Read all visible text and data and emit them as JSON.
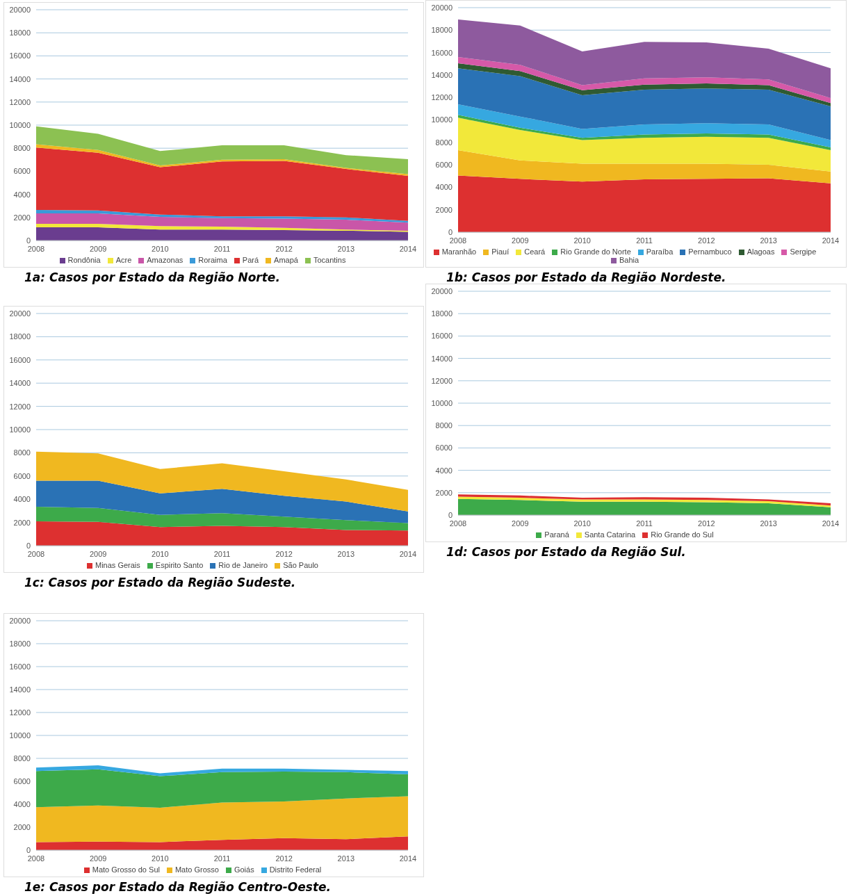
{
  "chart_data": [
    {
      "type": "area",
      "stacked": true,
      "title": "1a: Casos por Estado da Região Norte.",
      "x": [
        2008,
        2009,
        2010,
        2011,
        2012,
        2013,
        2014
      ],
      "xlim": [
        2008,
        2014
      ],
      "xticks": [
        2008,
        2009,
        2010,
        2011,
        2012,
        2013,
        2014
      ],
      "ylim": [
        0,
        20000
      ],
      "yticks": [
        0,
        2000,
        4000,
        6000,
        8000,
        10000,
        12000,
        14000,
        16000,
        18000,
        20000
      ],
      "grid": "y",
      "legend": "bottom",
      "series": [
        {
          "name": "Rondônia",
          "color": "#6a3d8f",
          "values": [
            1150,
            1150,
            950,
            950,
            900,
            850,
            750
          ]
        },
        {
          "name": "Acre",
          "color": "#f2e83a",
          "values": [
            300,
            300,
            300,
            250,
            200,
            100,
            100
          ]
        },
        {
          "name": "Amazonas",
          "color": "#c956a8",
          "values": [
            900,
            900,
            800,
            750,
            800,
            850,
            700
          ]
        },
        {
          "name": "Roraima",
          "color": "#3a9ad9",
          "values": [
            300,
            250,
            200,
            150,
            200,
            200,
            150
          ]
        },
        {
          "name": "Pará",
          "color": "#dd3030",
          "values": [
            5400,
            5000,
            4100,
            4750,
            4800,
            4200,
            3900
          ]
        },
        {
          "name": "Amapá",
          "color": "#f0b820",
          "values": [
            300,
            250,
            150,
            150,
            150,
            100,
            150
          ]
        },
        {
          "name": "Tocantins",
          "color": "#8cc152",
          "values": [
            1550,
            1400,
            1250,
            1250,
            1200,
            1100,
            1300
          ]
        }
      ]
    },
    {
      "type": "area",
      "stacked": true,
      "title": "1b: Casos por Estado da Região Nordeste.",
      "x": [
        2008,
        2009,
        2010,
        2011,
        2012,
        2013,
        2014
      ],
      "xlim": [
        2008,
        2014
      ],
      "xticks": [
        2008,
        2009,
        2010,
        2011,
        2012,
        2013,
        2014
      ],
      "ylim": [
        0,
        20000
      ],
      "yticks": [
        0,
        2000,
        4000,
        6000,
        8000,
        10000,
        12000,
        14000,
        16000,
        18000,
        20000
      ],
      "grid": "y",
      "legend": "bottom",
      "series": [
        {
          "name": "Maranhão",
          "color": "#dd3030",
          "values": [
            5050,
            4750,
            4500,
            4700,
            4750,
            4800,
            4350
          ]
        },
        {
          "name": "Piauí",
          "color": "#f0b820",
          "values": [
            2250,
            1650,
            1600,
            1400,
            1350,
            1200,
            1050
          ]
        },
        {
          "name": "Ceará",
          "color": "#f2e83a",
          "values": [
            2900,
            2700,
            2100,
            2300,
            2400,
            2400,
            1900
          ]
        },
        {
          "name": "Rio Grande do Norte",
          "color": "#3daa4a",
          "values": [
            250,
            200,
            200,
            300,
            300,
            300,
            250
          ]
        },
        {
          "name": "Paraíba",
          "color": "#36a8e0",
          "values": [
            950,
            1000,
            800,
            900,
            900,
            900,
            650
          ]
        },
        {
          "name": "Pernambuco",
          "color": "#2a72b5",
          "values": [
            3200,
            3600,
            3000,
            3100,
            3100,
            3100,
            3000
          ]
        },
        {
          "name": "Alagoas",
          "color": "#2f5a32",
          "values": [
            450,
            450,
            450,
            450,
            450,
            400,
            300
          ]
        },
        {
          "name": "Sergipe",
          "color": "#d659a8",
          "values": [
            550,
            550,
            450,
            550,
            550,
            500,
            450
          ]
        },
        {
          "name": "Bahia",
          "color": "#8e5a9e",
          "values": [
            3350,
            3500,
            3000,
            3250,
            3100,
            2750,
            2650
          ]
        }
      ]
    },
    {
      "type": "area",
      "stacked": true,
      "title": "1c: Casos por Estado da Região Sudeste.",
      "x": [
        2008,
        2009,
        2010,
        2011,
        2012,
        2013,
        2014
      ],
      "xlim": [
        2008,
        2014
      ],
      "xticks": [
        2008,
        2009,
        2010,
        2011,
        2012,
        2013,
        2014
      ],
      "ylim": [
        0,
        20000
      ],
      "yticks": [
        0,
        2000,
        4000,
        6000,
        8000,
        10000,
        12000,
        14000,
        16000,
        18000,
        20000
      ],
      "grid": "y",
      "legend": "bottom",
      "series": [
        {
          "name": "Minas Gerais",
          "color": "#dd3030",
          "values": [
            2100,
            2050,
            1600,
            1700,
            1600,
            1350,
            1300
          ]
        },
        {
          "name": "Espirito Santo",
          "color": "#3daa4a",
          "values": [
            1250,
            1200,
            1050,
            1100,
            900,
            850,
            650
          ]
        },
        {
          "name": "Rio de Janeiro",
          "color": "#2a72b5",
          "values": [
            2250,
            2350,
            1850,
            2100,
            1800,
            1600,
            1000
          ]
        },
        {
          "name": "São Paulo",
          "color": "#f0b820",
          "values": [
            2500,
            2350,
            2100,
            2200,
            2100,
            1900,
            1850
          ]
        }
      ]
    },
    {
      "type": "area",
      "stacked": true,
      "title": "1d: Casos por Estado da Região Sul.",
      "x": [
        2008,
        2009,
        2010,
        2011,
        2012,
        2013,
        2014
      ],
      "xlim": [
        2008,
        2014
      ],
      "xticks": [
        2008,
        2009,
        2010,
        2011,
        2012,
        2013,
        2014
      ],
      "ylim": [
        0,
        20000
      ],
      "yticks": [
        0,
        2000,
        4000,
        6000,
        8000,
        10000,
        12000,
        14000,
        16000,
        18000,
        20000
      ],
      "grid": "y",
      "legend": "bottom",
      "series": [
        {
          "name": "Paraná",
          "color": "#3daa4a",
          "values": [
            1450,
            1350,
            1200,
            1200,
            1150,
            1050,
            700
          ]
        },
        {
          "name": "Santa Catarina",
          "color": "#f2e83a",
          "values": [
            200,
            200,
            200,
            200,
            200,
            200,
            150
          ]
        },
        {
          "name": "Rio Grande do Sul",
          "color": "#dd3030",
          "values": [
            200,
            200,
            150,
            200,
            200,
            150,
            200
          ]
        }
      ]
    },
    {
      "type": "area",
      "stacked": true,
      "title": "1e: Casos por Estado da Região Centro-Oeste.",
      "x": [
        2008,
        2009,
        2010,
        2011,
        2012,
        2013,
        2014
      ],
      "xlim": [
        2008,
        2014
      ],
      "xticks": [
        2008,
        2009,
        2010,
        2011,
        2012,
        2013,
        2014
      ],
      "ylim": [
        0,
        20000
      ],
      "yticks": [
        0,
        2000,
        4000,
        6000,
        8000,
        10000,
        12000,
        14000,
        16000,
        18000,
        20000
      ],
      "grid": "y",
      "legend": "bottom",
      "series": [
        {
          "name": "Mato Grosso do Sul",
          "color": "#dd3030",
          "values": [
            700,
            750,
            700,
            900,
            1050,
            950,
            1200
          ]
        },
        {
          "name": "Mato Grosso",
          "color": "#f0b820",
          "values": [
            3050,
            3150,
            3000,
            3250,
            3200,
            3550,
            3500
          ]
        },
        {
          "name": "Goiás",
          "color": "#3daa4a",
          "values": [
            3150,
            3150,
            2750,
            2650,
            2600,
            2300,
            1900
          ]
        },
        {
          "name": "Distrito Federal",
          "color": "#36a8e0",
          "values": [
            300,
            350,
            250,
            300,
            250,
            200,
            300
          ]
        }
      ]
    }
  ]
}
